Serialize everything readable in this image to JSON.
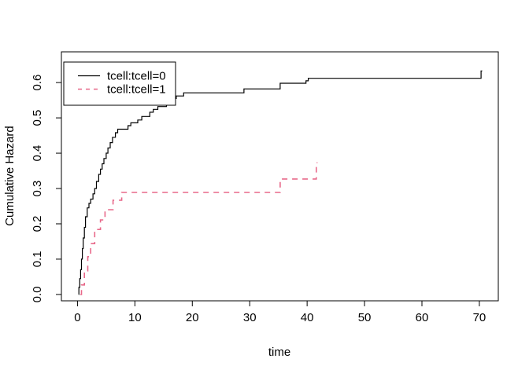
{
  "figure": {
    "background": "#ffffff",
    "axis_color": "#000000",
    "text_color": "#000000"
  },
  "chart_data": {
    "type": "line",
    "subtype": "step-function-cumulative-hazard",
    "title": "",
    "xlabel": "time",
    "ylabel": "Cumulative Hazard",
    "x_ticks": [
      0,
      10,
      20,
      30,
      40,
      50,
      60,
      70
    ],
    "y_ticks": [
      0.0,
      0.1,
      0.2,
      0.3,
      0.4,
      0.5,
      0.6
    ],
    "xlim": [
      -2.8,
      73.3
    ],
    "ylim": [
      -0.018,
      0.687
    ],
    "grid": false,
    "legend_position": "top-left",
    "legend_entries": [
      {
        "label": "tcell:tcell=0",
        "color": "#000000",
        "style": "solid"
      },
      {
        "label": "tcell:tcell=1",
        "color": "#e8698a",
        "style": "dashed"
      }
    ],
    "series": [
      {
        "name": "tcell:tcell=0",
        "color": "#000000",
        "style": "solid",
        "end_x": 70.5,
        "points": [
          [
            0.2,
            0
          ],
          [
            0.25,
            0.02
          ],
          [
            0.4,
            0.045
          ],
          [
            0.55,
            0.07
          ],
          [
            0.7,
            0.1
          ],
          [
            0.85,
            0.13
          ],
          [
            1.0,
            0.16
          ],
          [
            1.2,
            0.19
          ],
          [
            1.4,
            0.22
          ],
          [
            1.7,
            0.245
          ],
          [
            2.0,
            0.258
          ],
          [
            2.3,
            0.27
          ],
          [
            2.7,
            0.285
          ],
          [
            3.0,
            0.3
          ],
          [
            3.3,
            0.32
          ],
          [
            3.7,
            0.34
          ],
          [
            4.0,
            0.355
          ],
          [
            4.3,
            0.37
          ],
          [
            4.6,
            0.385
          ],
          [
            5.0,
            0.4
          ],
          [
            5.3,
            0.415
          ],
          [
            5.7,
            0.43
          ],
          [
            6.1,
            0.445
          ],
          [
            6.6,
            0.458
          ],
          [
            7.0,
            0.468
          ],
          [
            8.8,
            0.478
          ],
          [
            9.3,
            0.486
          ],
          [
            10.5,
            0.494
          ],
          [
            11.2,
            0.504
          ],
          [
            12.6,
            0.516
          ],
          [
            13.2,
            0.524
          ],
          [
            14.0,
            0.532
          ],
          [
            15.5,
            0.545
          ],
          [
            16.5,
            0.555
          ],
          [
            17.2,
            0.562
          ],
          [
            18.5,
            0.571
          ],
          [
            29.0,
            0.582
          ],
          [
            35.3,
            0.598
          ],
          [
            39.8,
            0.605
          ],
          [
            40.2,
            0.612
          ],
          [
            70.3,
            0.633
          ]
        ]
      },
      {
        "name": "tcell:tcell=1",
        "color": "#e8698a",
        "style": "dashed",
        "end_x": 41.8,
        "points": [
          [
            0.5,
            0
          ],
          [
            0.7,
            0.027
          ],
          [
            1.2,
            0.067
          ],
          [
            1.8,
            0.107
          ],
          [
            2.3,
            0.144
          ],
          [
            3.0,
            0.184
          ],
          [
            4.0,
            0.211
          ],
          [
            4.8,
            0.24
          ],
          [
            6.2,
            0.267
          ],
          [
            7.7,
            0.289
          ],
          [
            35.3,
            0.327
          ],
          [
            41.6,
            0.373
          ]
        ]
      }
    ]
  }
}
